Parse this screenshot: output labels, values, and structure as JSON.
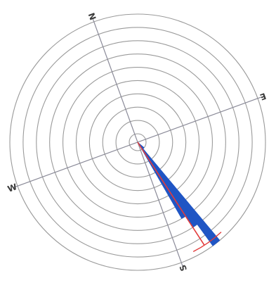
{
  "chart_data": {
    "type": "rose",
    "title": "",
    "orientation_deg": -20,
    "axis_labels": [
      "N",
      "E",
      "S",
      "W"
    ],
    "ring_count": 10,
    "grid": true,
    "legend": "none",
    "sectors": [
      {
        "from_deg": 160,
        "to_deg": 164,
        "value": 10
      },
      {
        "from_deg": 164,
        "to_deg": 167,
        "value": 8
      },
      {
        "from_deg": 167,
        "to_deg": 170,
        "value": 7
      },
      {
        "from_deg": 150,
        "to_deg": 160,
        "value": 1
      }
    ],
    "mean_direction": {
      "azimuth_deg": 167,
      "length": 9.6,
      "arc_from_deg": 157,
      "arc_to_deg": 173
    },
    "colors": {
      "sector_fill": "#1f55c4",
      "mean_vector": "#e23b3b",
      "ring": "#9a9a9a",
      "axis": "#8a8a98"
    }
  }
}
